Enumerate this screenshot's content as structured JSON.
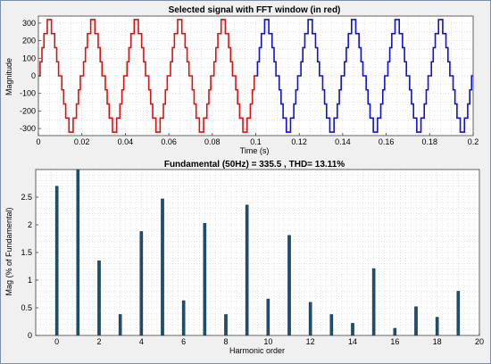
{
  "chart_data": [
    {
      "type": "line",
      "title": "Selected signal with FFT window (in red)",
      "xlabel": "Time (s)",
      "ylabel": "Magnitude",
      "xlim": [
        0,
        0.2
      ],
      "ylim": [
        -340,
        340
      ],
      "x_ticks": [
        "0",
        "0.02",
        "0.04",
        "0.06",
        "0.08",
        "0.1",
        "0.12",
        "0.14",
        "0.16",
        "0.18",
        "0.2"
      ],
      "y_ticks": [
        "300",
        "200",
        "100",
        "0",
        "-100",
        "-200",
        "-300"
      ],
      "grid": true,
      "signal": {
        "frequency_hz": 50,
        "step_levels": [
          0,
          80,
          160,
          240,
          320
        ],
        "step_amplitude": 335.5
      },
      "series": [
        {
          "color": "#e01010",
          "t_range": [
            0,
            0.1
          ],
          "values_desc": "FFT window segment"
        },
        {
          "color": "#1010d8",
          "t_range": [
            0.1,
            0.2
          ]
        }
      ]
    },
    {
      "type": "bar",
      "title": "Fundamental (50Hz) = 335.5 , THD= 13.11%",
      "xlabel": "Harmonic order",
      "ylabel": "Mag (% of Fundamental)",
      "xlim": [
        -1,
        20
      ],
      "ylim": [
        0,
        3.0
      ],
      "x_ticks": [
        "0",
        "2",
        "4",
        "6",
        "8",
        "10",
        "12",
        "14",
        "16",
        "18",
        "20"
      ],
      "y_ticks": [
        "2.5",
        "2",
        "1.5",
        "1",
        "0.5",
        "0"
      ],
      "grid": true,
      "bar_color": "#1f4f6e",
      "categories": [
        0,
        1,
        2,
        3,
        4,
        5,
        6,
        7,
        8,
        9,
        10,
        11,
        12,
        13,
        14,
        15,
        16,
        17,
        18,
        19
      ],
      "values": [
        2.7,
        3.0,
        1.35,
        0.38,
        1.88,
        2.47,
        0.63,
        2.03,
        0.38,
        2.36,
        0.66,
        1.81,
        0.6,
        0.38,
        0.22,
        1.21,
        0.13,
        0.52,
        0.33,
        0.8
      ]
    }
  ]
}
